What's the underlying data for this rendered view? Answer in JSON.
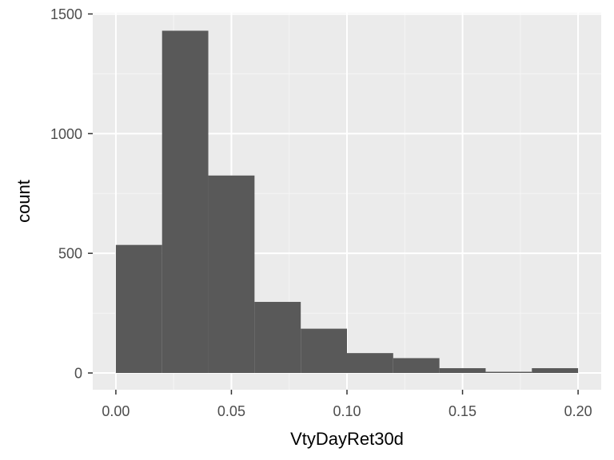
{
  "chart_data": {
    "type": "bar",
    "subtype": "histogram",
    "xlabel": "VtyDayRet30d",
    "ylabel": "count",
    "bin_width": 0.02,
    "bins": [
      {
        "x0": 0.0,
        "x1": 0.02,
        "count": 535
      },
      {
        "x0": 0.02,
        "x1": 0.04,
        "count": 1430
      },
      {
        "x0": 0.04,
        "x1": 0.06,
        "count": 825
      },
      {
        "x0": 0.06,
        "x1": 0.08,
        "count": 297
      },
      {
        "x0": 0.08,
        "x1": 0.1,
        "count": 185
      },
      {
        "x0": 0.1,
        "x1": 0.12,
        "count": 83
      },
      {
        "x0": 0.12,
        "x1": 0.14,
        "count": 62
      },
      {
        "x0": 0.14,
        "x1": 0.16,
        "count": 20
      },
      {
        "x0": 0.16,
        "x1": 0.18,
        "count": 5
      },
      {
        "x0": 0.18,
        "x1": 0.2,
        "count": 20
      }
    ],
    "xlim": [
      -0.01,
      0.21
    ],
    "ylim": [
      -70,
      1505
    ],
    "x_ticks": [
      0.0,
      0.05,
      0.1,
      0.15,
      0.2
    ],
    "x_tick_labels": [
      "0.00",
      "0.05",
      "0.10",
      "0.15",
      "0.20"
    ],
    "x_minor_ticks": [
      0.025,
      0.075,
      0.125,
      0.175
    ],
    "y_ticks": [
      0,
      500,
      1000,
      1500
    ],
    "y_tick_labels": [
      "0",
      "500",
      "1000",
      "1500"
    ],
    "y_minor_ticks": [
      250,
      750,
      1250
    ],
    "grid": true,
    "legend": "none",
    "colors": {
      "bar_fill": "#595959",
      "panel_background": "#ebebeb",
      "grid_major": "#ffffff",
      "grid_minor": "#f5f5f5",
      "tick_mark": "#333333",
      "tick_label": "#4d4d4d",
      "axis_title": "#000000"
    }
  }
}
